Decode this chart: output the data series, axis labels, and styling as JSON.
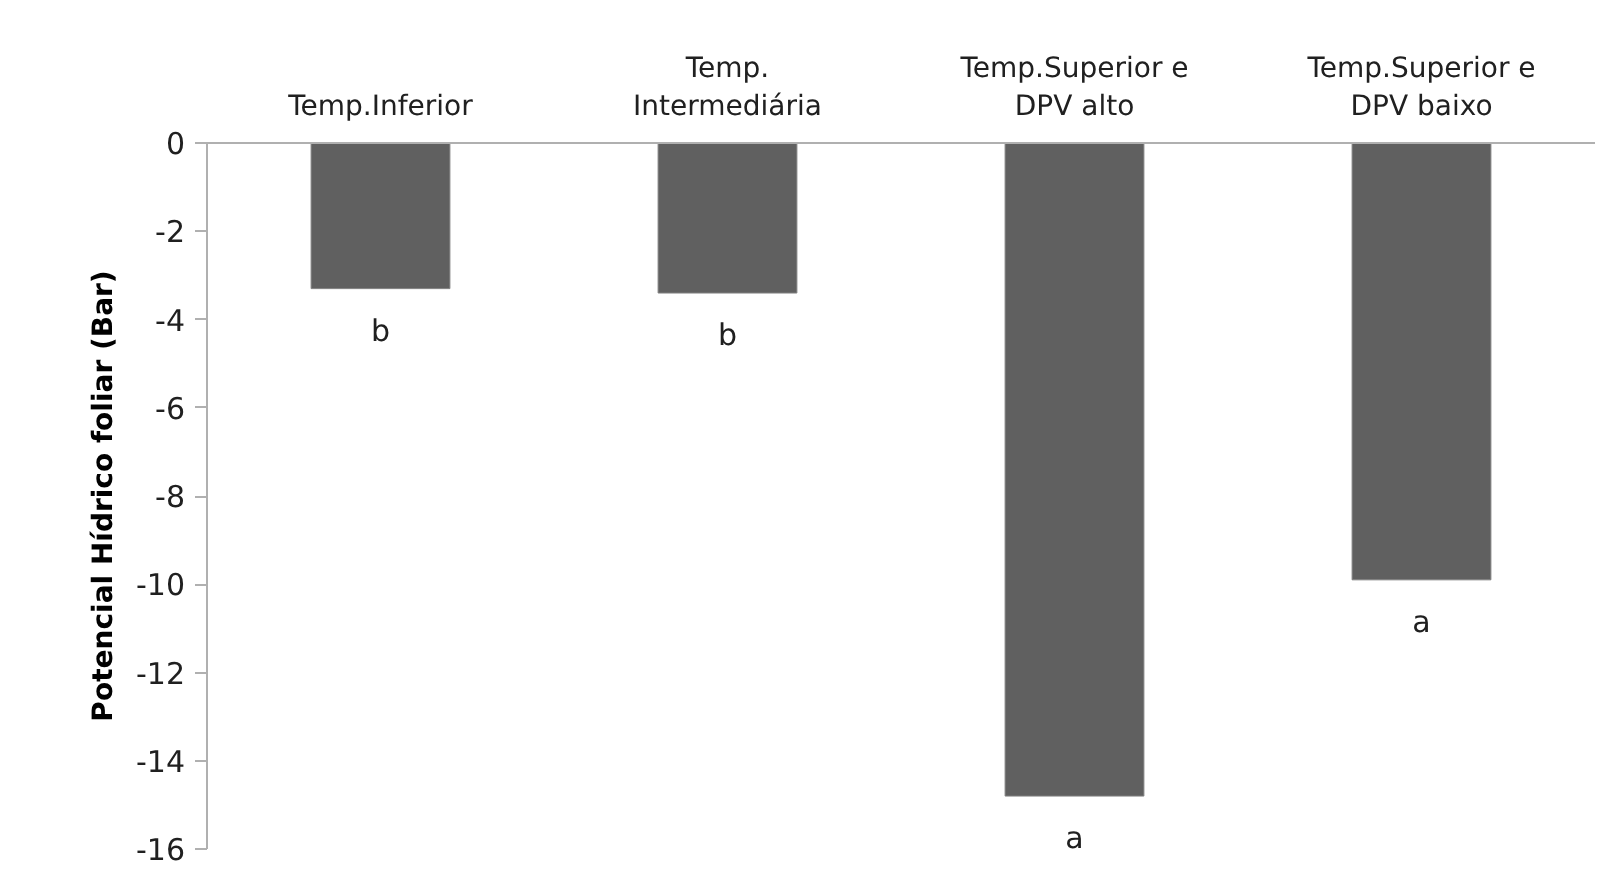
{
  "chart_data": {
    "type": "bar",
    "ylabel": "Potencial Hídrico foliar (Bar)",
    "categories": [
      "Temp.Inferior",
      "Temp. Intermediária",
      "Temp.Superior e DPV alto",
      "Temp.Superior e DPV baixo"
    ],
    "values": [
      -3.3,
      -3.4,
      -14.8,
      -9.9
    ],
    "color": "#606060",
    "ylim": [
      -16,
      0
    ],
    "yticks": [
      0,
      -2,
      -4,
      -6,
      -8,
      -10,
      -12,
      -14,
      -16
    ],
    "grid": false,
    "annotations": [
      {
        "text": "b",
        "x": "Temp.Inferior",
        "y": -3.3
      },
      {
        "text": "b",
        "x": "Temp. Intermediária",
        "y": -3.4
      },
      {
        "text": "a",
        "x": "Temp.Superior e DPV alto",
        "y": -14.8
      },
      {
        "text": "a",
        "x": "Temp.Superior e DPV baixo",
        "y": -9.9
      }
    ]
  }
}
